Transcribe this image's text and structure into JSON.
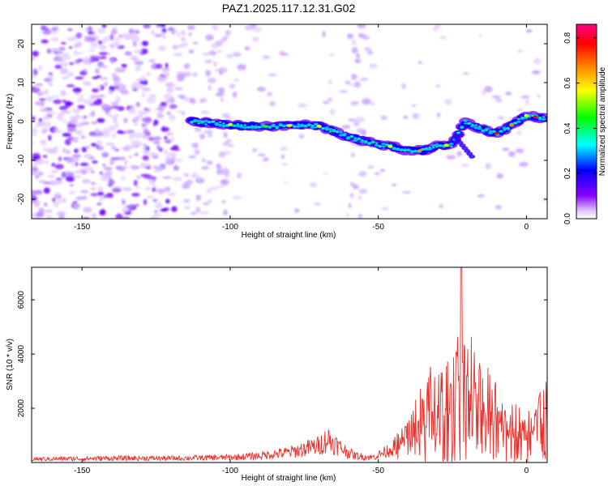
{
  "title": "PAZ1.2025.117.12.31.G02",
  "chart_data": [
    {
      "type": "heatmap",
      "xlabel": "Height of straight line (km)",
      "ylabel": "Frequency (Hz)",
      "xlim": [
        -167,
        7
      ],
      "ylim": [
        -25,
        25
      ],
      "x_ticks": [
        -150,
        -100,
        -50,
        0
      ],
      "y_ticks": [
        -20,
        -10,
        0,
        10,
        20
      ],
      "colorbar": {
        "label": "Normalized spectral amplitude",
        "range": [
          0,
          0.86
        ],
        "ticks": [
          "0.0",
          "0.2",
          "0.4",
          "0.6",
          "0.8"
        ],
        "colors": [
          "#ffffff",
          "#8800ff",
          "#0000ff",
          "#00ffff",
          "#00ff00",
          "#ffff00",
          "#ff8800",
          "#ff0000",
          "#ff0088"
        ]
      },
      "ridge_frequency_hz": [
        [
          -113,
          0
        ],
        [
          -105,
          -0.5
        ],
        [
          -95,
          -1.2
        ],
        [
          -85,
          -1.3
        ],
        [
          -75,
          -0.8
        ],
        [
          -70,
          -1.2
        ],
        [
          -65,
          -2.5
        ],
        [
          -60,
          -4
        ],
        [
          -55,
          -5
        ],
        [
          -50,
          -6
        ],
        [
          -45,
          -6.5
        ],
        [
          -40,
          -7.5
        ],
        [
          -35,
          -7.5
        ],
        [
          -30,
          -6.2
        ],
        [
          -25,
          -6
        ],
        [
          -21,
          0
        ],
        [
          -15,
          -2
        ],
        [
          -10,
          -3
        ],
        [
          -5,
          -1
        ],
        [
          0,
          1.5
        ],
        [
          5,
          1
        ]
      ]
    },
    {
      "type": "line",
      "xlabel": "Height of straight line (km)",
      "ylabel": "SNR (10 * v/v)",
      "xlim": [
        -167,
        7
      ],
      "ylim": [
        0,
        7200
      ],
      "x_ticks": [
        -150,
        -100,
        -50,
        0
      ],
      "y_ticks": [
        2000,
        4000,
        6000
      ],
      "series": [
        {
          "color": "#e8302c",
          "envelope": [
            [
              -167,
              200
            ],
            [
              -140,
              250
            ],
            [
              -120,
              250
            ],
            [
              -100,
              300
            ],
            [
              -90,
              400
            ],
            [
              -80,
              600
            ],
            [
              -70,
              1000
            ],
            [
              -67,
              1400
            ],
            [
              -63,
              900
            ],
            [
              -58,
              400
            ],
            [
              -52,
              300
            ],
            [
              -48,
              600
            ],
            [
              -44,
              1000
            ],
            [
              -40,
              2000
            ],
            [
              -35,
              3000
            ],
            [
              -32,
              3700
            ],
            [
              -28,
              3600
            ],
            [
              -25,
              4000
            ],
            [
              -22,
              7200
            ],
            [
              -20,
              6000
            ],
            [
              -17,
              3800
            ],
            [
              -14,
              3600
            ],
            [
              -11,
              3800
            ],
            [
              -9,
              3500
            ],
            [
              -7,
              3200
            ],
            [
              -5,
              2600
            ],
            [
              -3,
              2300
            ],
            [
              -1,
              1700
            ],
            [
              1,
              2300
            ],
            [
              3,
              2800
            ],
            [
              5,
              3000
            ],
            [
              7,
              3100
            ]
          ]
        }
      ]
    }
  ]
}
